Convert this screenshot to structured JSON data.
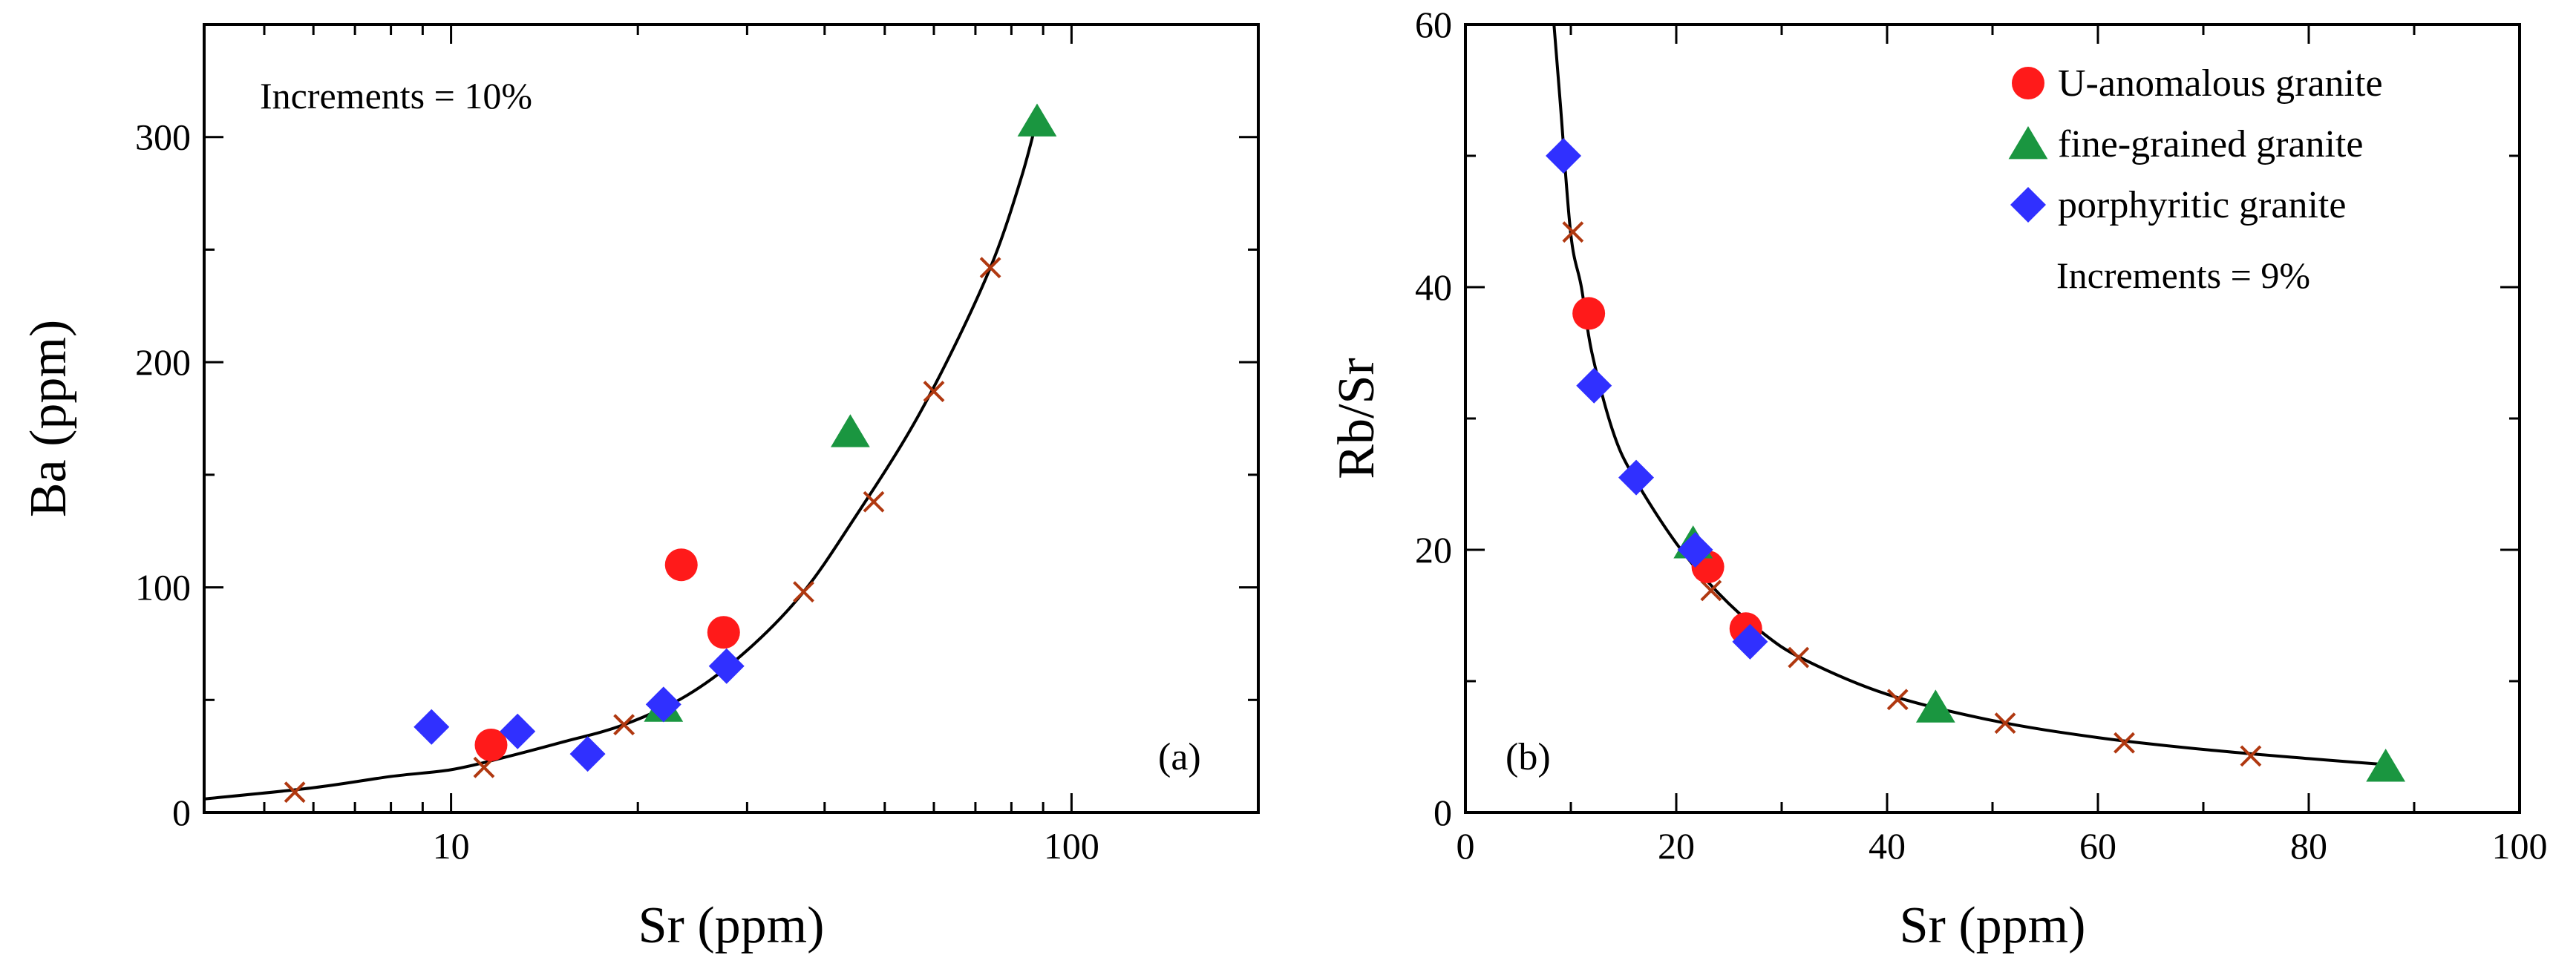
{
  "colors": {
    "u_anomalous": "#ff1a1a",
    "fine_grained": "#1a9640",
    "porphyritic": "#3030ff",
    "cross": "#b03810",
    "curve": "#000000"
  },
  "chart_data": [
    {
      "id": "a",
      "type": "scatter",
      "x_scale": "log",
      "xlabel": "Sr (ppm)",
      "ylabel": "Ba (ppm)",
      "xlim": [
        4,
        200
      ],
      "ylim": [
        0,
        350
      ],
      "xticks": [
        10,
        100
      ],
      "yticks": [
        0,
        100,
        200,
        300
      ],
      "annotation": "Increments = 10%",
      "panel_label": "(a)",
      "series": [
        {
          "name": "U-anomalous granite",
          "marker": "circle",
          "points": [
            [
              11.6,
              30
            ],
            [
              23.5,
              110
            ],
            [
              27.5,
              80
            ]
          ]
        },
        {
          "name": "fine-grained granite",
          "marker": "triangle",
          "points": [
            [
              22,
              47
            ],
            [
              44,
              169
            ],
            [
              88,
              307
            ]
          ]
        },
        {
          "name": "porphyritic granite",
          "marker": "diamond",
          "points": [
            [
              9.3,
              38
            ],
            [
              12.8,
              36
            ],
            [
              16.6,
              26
            ],
            [
              22,
              48
            ],
            [
              27.8,
              65
            ]
          ]
        }
      ],
      "model_curve": [
        [
          4,
          6
        ],
        [
          6,
          11
        ],
        [
          8,
          16
        ],
        [
          10,
          19
        ],
        [
          12,
          24
        ],
        [
          15,
          31
        ],
        [
          19,
          39
        ],
        [
          24,
          52
        ],
        [
          30,
          72
        ],
        [
          37,
          98
        ],
        [
          45,
          132
        ],
        [
          55,
          170
        ],
        [
          65,
          208
        ],
        [
          75,
          246
        ],
        [
          83,
          282
        ],
        [
          88,
          308
        ]
      ],
      "increment_points": [
        [
          5.6,
          9
        ],
        [
          11.3,
          20
        ],
        [
          19,
          39
        ],
        [
          37,
          98
        ],
        [
          48,
          138
        ],
        [
          60,
          187
        ],
        [
          74,
          242
        ]
      ]
    },
    {
      "id": "b",
      "type": "scatter",
      "x_scale": "linear",
      "xlabel": "Sr (ppm)",
      "ylabel": "Rb/Sr",
      "xlim": [
        0,
        100
      ],
      "ylim": [
        0,
        60
      ],
      "xticks": [
        0,
        20,
        40,
        60,
        80,
        100
      ],
      "yticks": [
        0,
        20,
        40,
        60
      ],
      "annotation": "Increments = 9%",
      "panel_label": "(b)",
      "series": [
        {
          "name": "U-anomalous granite",
          "marker": "circle",
          "points": [
            [
              11.7,
              38
            ],
            [
              23,
              18.7
            ],
            [
              26.6,
              14
            ]
          ]
        },
        {
          "name": "fine-grained granite",
          "marker": "triangle",
          "points": [
            [
              21.6,
              20.5
            ],
            [
              44.6,
              8
            ],
            [
              87.3,
              3.5
            ]
          ]
        },
        {
          "name": "porphyritic granite",
          "marker": "diamond",
          "points": [
            [
              9.3,
              50
            ],
            [
              12.2,
              32.5
            ],
            [
              16.2,
              25.5
            ],
            [
              21.8,
              20
            ],
            [
              27,
              13
            ]
          ]
        }
      ],
      "model_curve": [
        [
          8.4,
          60
        ],
        [
          9,
          54
        ],
        [
          10,
          44
        ],
        [
          11,
          40
        ],
        [
          12,
          35
        ],
        [
          14,
          29
        ],
        [
          16,
          25.5
        ],
        [
          20,
          20.5
        ],
        [
          24,
          16.7
        ],
        [
          28,
          13.8
        ],
        [
          32,
          11.7
        ],
        [
          40,
          9
        ],
        [
          50,
          7
        ],
        [
          60,
          5.7
        ],
        [
          70,
          4.8
        ],
        [
          80,
          4.1
        ],
        [
          88,
          3.6
        ]
      ],
      "increment_points": [
        [
          10.2,
          44.2
        ],
        [
          23.3,
          16.9
        ],
        [
          31.6,
          11.8
        ],
        [
          41,
          8.6
        ],
        [
          51.2,
          6.8
        ],
        [
          62.5,
          5.3
        ],
        [
          74.5,
          4.3
        ]
      ],
      "legend": [
        {
          "label": "U-anomalous granite",
          "marker": "circle"
        },
        {
          "label": "fine-grained granite",
          "marker": "triangle"
        },
        {
          "label": "porphyritic granite",
          "marker": "diamond"
        }
      ]
    }
  ]
}
